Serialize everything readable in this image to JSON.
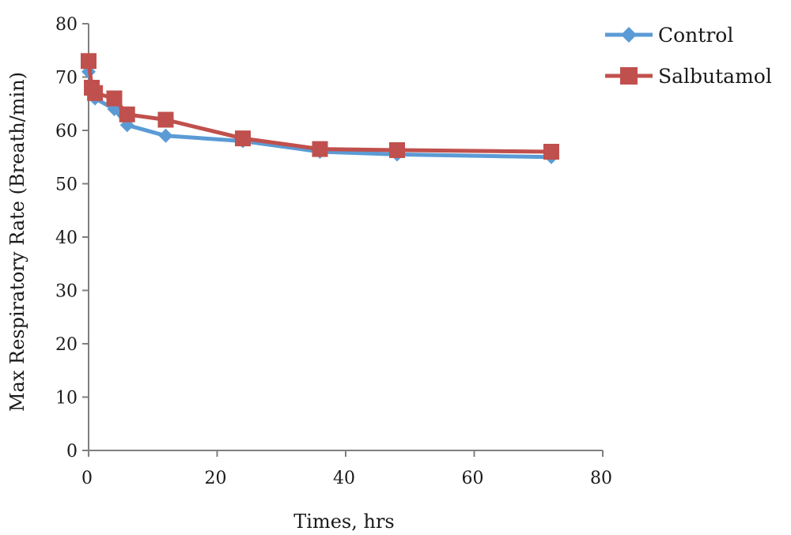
{
  "chart_data": {
    "type": "line",
    "xlabel": "Times, hrs",
    "ylabel": "Max Respiratory Rate (Breath/min)",
    "xlim": [
      0,
      80
    ],
    "ylim": [
      0,
      80
    ],
    "xticks": [
      "0",
      "20",
      "40",
      "60",
      "80"
    ],
    "yticks": [
      "0",
      "10",
      "20",
      "30",
      "40",
      "50",
      "60",
      "70",
      "80"
    ],
    "grid": false,
    "legend_position": "top-right",
    "series": [
      {
        "name": "Control",
        "color": "#5b9bd5",
        "marker": "diamond",
        "x": [
          0,
          0.5,
          1,
          4,
          6,
          12,
          24,
          36,
          48,
          72
        ],
        "y": [
          71,
          68,
          66,
          64,
          61,
          59,
          58,
          56,
          55.5,
          55
        ]
      },
      {
        "name": "Salbutamol",
        "color": "#c0504d",
        "marker": "square",
        "x": [
          0,
          0.5,
          1,
          4,
          6,
          12,
          24,
          36,
          48,
          72
        ],
        "y": [
          73,
          68,
          67,
          66,
          63,
          62,
          58.5,
          56.5,
          56.3,
          56
        ]
      }
    ]
  }
}
